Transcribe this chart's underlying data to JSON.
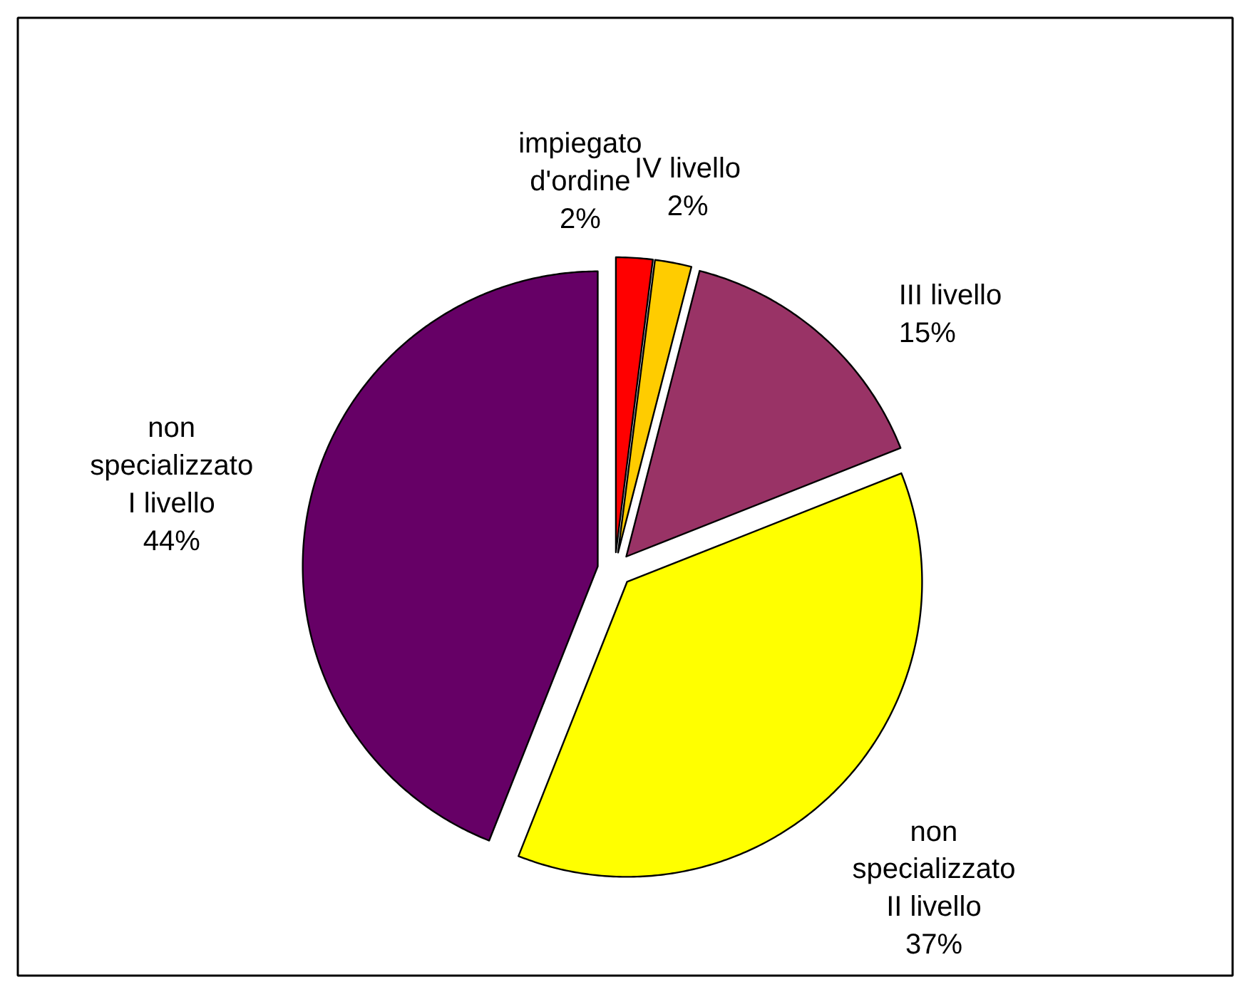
{
  "chart_data": {
    "type": "pie",
    "categories": [
      "impiegato\nd'ordine",
      "IV livello",
      "III livello",
      "non\nspecializzato\nII livello",
      "non\nspecializzato\nI livello"
    ],
    "values": [
      2,
      2,
      15,
      37,
      44
    ],
    "colors": [
      "#ff0000",
      "#ffcc00",
      "#993366",
      "#ffff00",
      "#660066"
    ],
    "value_labels": [
      "2%",
      "2%",
      "15%",
      "37%",
      "44%"
    ],
    "legend": false
  }
}
